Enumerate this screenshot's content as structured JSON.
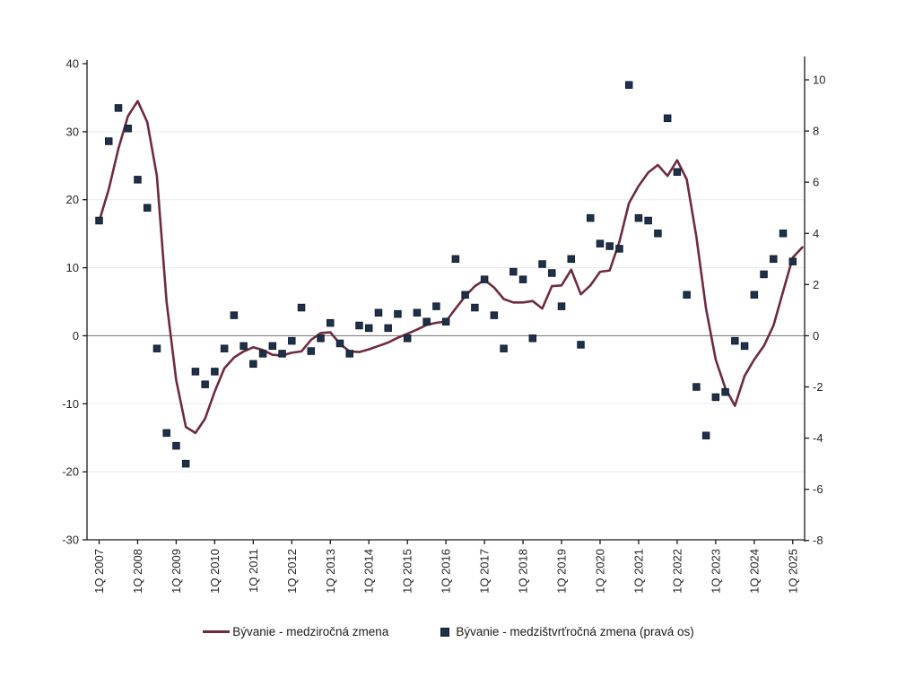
{
  "chart_data": {
    "type": "line",
    "x_categories": [
      "1Q 2007",
      "2Q 2007",
      "3Q 2007",
      "4Q 2007",
      "1Q 2008",
      "2Q 2008",
      "3Q 2008",
      "4Q 2008",
      "1Q 2009",
      "2Q 2009",
      "3Q 2009",
      "4Q 2009",
      "1Q 2010",
      "2Q 2010",
      "3Q 2010",
      "4Q 2010",
      "1Q 2011",
      "2Q 2011",
      "3Q 2011",
      "4Q 2011",
      "1Q 2012",
      "2Q 2012",
      "3Q 2012",
      "4Q 2012",
      "1Q 2013",
      "2Q 2013",
      "3Q 2013",
      "4Q 2013",
      "1Q 2014",
      "2Q 2014",
      "3Q 2014",
      "4Q 2014",
      "1Q 2015",
      "2Q 2015",
      "3Q 2015",
      "4Q 2015",
      "1Q 2016",
      "2Q 2016",
      "3Q 2016",
      "4Q 2016",
      "1Q 2017",
      "2Q 2017",
      "3Q 2017",
      "4Q 2017",
      "1Q 2018",
      "2Q 2018",
      "3Q 2018",
      "4Q 2018",
      "1Q 2019",
      "2Q 2019",
      "3Q 2019",
      "4Q 2019",
      "1Q 2020",
      "2Q 2020",
      "3Q 2020",
      "4Q 2020",
      "1Q 2021",
      "2Q 2021",
      "3Q 2021",
      "4Q 2021",
      "1Q 2022",
      "2Q 2022",
      "3Q 2022",
      "4Q 2022",
      "1Q 2023",
      "2Q 2023",
      "3Q 2023",
      "4Q 2023",
      "1Q 2024",
      "2Q 2024",
      "3Q 2024",
      "4Q 2024",
      "1Q 2025",
      "2Q 2025"
    ],
    "x_tick_every": 4,
    "series": [
      {
        "name": "Bývanie - medziročná zmena",
        "type": "line",
        "axis": "left",
        "color": "#6f2b3d",
        "values": [
          16.8,
          21.5,
          27.5,
          32.3,
          34.5,
          31.4,
          23.5,
          5.0,
          -6.5,
          -13.4,
          -14.3,
          -12.2,
          -8.2,
          -4.8,
          -3.2,
          -2.3,
          -1.7,
          -2.1,
          -2.8,
          -2.9,
          -2.5,
          -2.3,
          -0.6,
          0.4,
          0.5,
          -1.2,
          -2.3,
          -2.4,
          -2.0,
          -1.5,
          -1.0,
          -0.3,
          0.3,
          0.9,
          1.6,
          1.9,
          2.1,
          4.0,
          5.8,
          7.3,
          8.2,
          7.1,
          5.4,
          4.9,
          4.9,
          5.1,
          4.0,
          7.3,
          7.4,
          9.7,
          6.1,
          7.4,
          9.4,
          9.6,
          13.8,
          19.5,
          22.0,
          24.0,
          25.1,
          23.5,
          25.8,
          23.0,
          14.5,
          4.0,
          -3.5,
          -7.7,
          -10.3,
          -5.9,
          -3.5,
          -1.5,
          1.5,
          6.5,
          11.5,
          13.0
        ]
      },
      {
        "name": "Bývanie - medzištvrťročná zmena (pravá os)",
        "type": "scatter",
        "axis": "right",
        "color": "#1f3049",
        "marker_border": "#121f33",
        "values": [
          4.5,
          7.6,
          8.9,
          8.1,
          6.1,
          5.0,
          -0.5,
          -3.8,
          -4.3,
          -5.0,
          -1.4,
          -1.9,
          -1.4,
          -0.5,
          0.8,
          -0.4,
          -1.1,
          -0.7,
          -0.4,
          -0.7,
          -0.2,
          1.1,
          -0.6,
          -0.1,
          0.5,
          -0.3,
          -0.7,
          0.4,
          0.3,
          0.9,
          0.3,
          0.85,
          -0.1,
          0.9,
          0.55,
          1.15,
          0.55,
          3.0,
          1.6,
          1.1,
          2.2,
          0.8,
          -0.5,
          2.5,
          2.2,
          -0.1,
          2.8,
          2.45,
          1.15,
          3.0,
          -0.35,
          4.6,
          3.6,
          3.5,
          3.4,
          9.8,
          4.6,
          4.5,
          4.0,
          8.5,
          6.4,
          1.6,
          -2.0,
          -3.9,
          -2.4,
          -2.2,
          -0.2,
          -0.4,
          1.6,
          2.4,
          3.0,
          4.0,
          2.9,
          null
        ]
      }
    ],
    "left_axis": {
      "min": -30,
      "max": 40,
      "ticks": [
        40,
        30,
        20,
        10,
        0,
        -10,
        -20,
        -30
      ]
    },
    "right_axis": {
      "min": -8,
      "max": 10,
      "ticks": [
        10,
        8,
        6,
        4,
        2,
        0,
        -2,
        -4,
        -6,
        -8
      ]
    },
    "title": "",
    "xlabel": "",
    "ylabel": "",
    "grid": "horizontal-light",
    "legend_position": "bottom"
  },
  "legend": {
    "item1": "Bývanie - medziročná zmena",
    "item2": "Bývanie - medzištvrťročná zmena (pravá os)"
  },
  "colors": {
    "line_series": "#6f2b3d",
    "scatter_series": "#1f3049",
    "zero_line": "#808080",
    "gridline": "#e9e9e9",
    "axis": "#1a1a1a",
    "background": "#ffffff",
    "tick_text": "#262626"
  }
}
